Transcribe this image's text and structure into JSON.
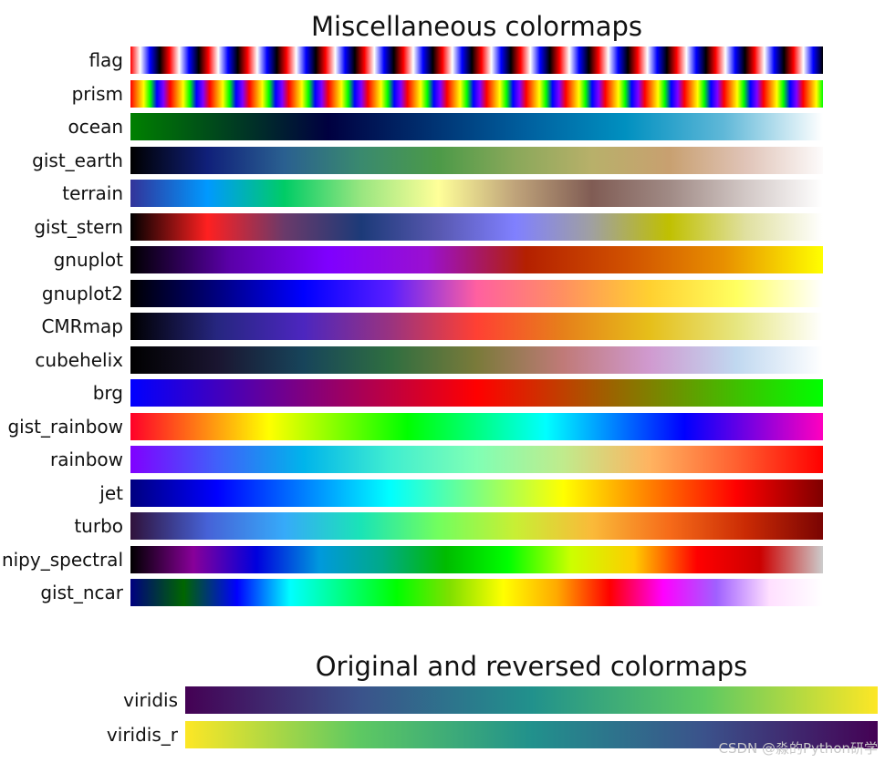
{
  "chart_data": [
    {
      "type": "colormap",
      "title": "Miscellaneous colormaps",
      "colormaps": [
        {
          "name": "flag",
          "stops": [
            "#ff0000",
            "#ffffff",
            "#0000ff",
            "#000000",
            "#ff0000",
            "#ffffff",
            "#0000ff",
            "#000000",
            "#ff0000",
            "#ffffff",
            "#0000ff",
            "#000000",
            "#ff0000",
            "#ffffff",
            "#0000ff",
            "#000000",
            "#ff0000",
            "#ffffff",
            "#0000ff",
            "#000000",
            "#ff0000",
            "#ffffff",
            "#0000ff",
            "#000000",
            "#ff0000",
            "#ffffff",
            "#0000ff",
            "#000000",
            "#ff0000",
            "#ffffff",
            "#0000ff",
            "#000000",
            "#ff0000",
            "#ffffff",
            "#0000ff",
            "#000000",
            "#ff0000",
            "#ffffff",
            "#0000ff",
            "#000000",
            "#ff0000",
            "#ffffff",
            "#0000ff",
            "#000000",
            "#ff0000",
            "#ffffff",
            "#0000ff",
            "#000000",
            "#ff0000",
            "#ffffff",
            "#0000ff",
            "#000000",
            "#ff0000",
            "#ffffff",
            "#0000ff",
            "#000000",
            "#ff0000",
            "#ffffff",
            "#0000ff",
            "#000000",
            "#ff0000",
            "#ffffff",
            "#0000ff",
            "#000000",
            "#ff0000",
            "#ffffff",
            "#0000ff",
            "#000000",
            "#ff0000",
            "#ffffff",
            "#0000ff",
            "#000000"
          ]
        },
        {
          "name": "prism",
          "stops": [
            "#ff0000",
            "#ff8000",
            "#ffff00",
            "#00ff00",
            "#0000ff",
            "#8000ff",
            "#ff0000",
            "#ff8000",
            "#ffff00",
            "#00ff00",
            "#0000ff",
            "#8000ff",
            "#ff0000",
            "#ff8000",
            "#ffff00",
            "#00ff00",
            "#0000ff",
            "#8000ff",
            "#ff0000",
            "#ff8000",
            "#ffff00",
            "#00ff00",
            "#0000ff",
            "#8000ff",
            "#ff0000",
            "#ff8000",
            "#ffff00",
            "#00ff00",
            "#0000ff",
            "#8000ff",
            "#ff0000",
            "#ff8000",
            "#ffff00",
            "#00ff00",
            "#0000ff",
            "#8000ff",
            "#ff0000",
            "#ff8000",
            "#ffff00",
            "#00ff00",
            "#0000ff",
            "#8000ff",
            "#ff0000",
            "#ff8000",
            "#ffff00",
            "#00ff00",
            "#0000ff",
            "#8000ff",
            "#ff0000",
            "#ff8000",
            "#ffff00",
            "#00ff00",
            "#0000ff",
            "#8000ff",
            "#ff0000",
            "#ff8000",
            "#ffff00",
            "#00ff00",
            "#0000ff",
            "#8000ff",
            "#ff0000",
            "#ff8000",
            "#ffff00",
            "#00ff00",
            "#0000ff",
            "#8000ff",
            "#ff0000",
            "#ff8000",
            "#ffff00",
            "#00ff00",
            "#0000ff",
            "#8000ff",
            "#ff0000",
            "#ff8000",
            "#ffff00",
            "#00ff00",
            "#0000ff",
            "#8000ff",
            "#ff0000",
            "#ff8000",
            "#ffff00",
            "#00ff00",
            "#0000ff",
            "#8000ff",
            "#ff0000",
            "#ff8000",
            "#ffff00",
            "#00ff00",
            "#0000ff",
            "#8000ff",
            "#ff0000",
            "#ff8000",
            "#ffff00",
            "#00ff00",
            "#0000ff",
            "#8000ff",
            "#ff0000",
            "#ff8000",
            "#ffff00",
            "#00ff00",
            "#0000ff",
            "#8000ff",
            "#ff0000",
            "#ff8000",
            "#ffff00",
            "#00ff00"
          ]
        },
        {
          "name": "ocean",
          "stops": [
            "#008000",
            "#004020",
            "#000040",
            "#003070",
            "#00609f",
            "#0090c0",
            "#60b8d8",
            "#ffffff"
          ]
        },
        {
          "name": "gist_earth",
          "stops": [
            "#000000",
            "#10207a",
            "#2a6090",
            "#3a8a6e",
            "#4c9a48",
            "#8aa85a",
            "#b8b06a",
            "#c8a070",
            "#e0c4b8",
            "#fdfbfb"
          ]
        },
        {
          "name": "terrain",
          "stops": [
            "#333399",
            "#0099ff",
            "#00cc66",
            "#99e680",
            "#ffff99",
            "#bfa37a",
            "#805c54",
            "#a08a85",
            "#d2c8c6",
            "#ffffff"
          ]
        },
        {
          "name": "gist_stern",
          "stops": [
            "#000000",
            "#ff2020",
            "#6a3a6a",
            "#1c3a78",
            "#5858b0",
            "#8080ff",
            "#a0a0a0",
            "#c0c000",
            "#e0e0a0",
            "#ffffff"
          ]
        },
        {
          "name": "gnuplot",
          "stops": [
            "#000000",
            "#5a00a8",
            "#7f00ff",
            "#9a10d0",
            "#b42000",
            "#d05000",
            "#e89000",
            "#ffff00"
          ]
        },
        {
          "name": "gnuplot2",
          "stops": [
            "#000000",
            "#00007f",
            "#0000ff",
            "#5a1eff",
            "#ff60a0",
            "#ff9060",
            "#ffd030",
            "#ffff60",
            "#ffffff"
          ]
        },
        {
          "name": "CMRmap",
          "stops": [
            "#000000",
            "#262680",
            "#4c26bf",
            "#993380",
            "#ff4033",
            "#e6801a",
            "#e6bf1a",
            "#e6e680",
            "#ffffff"
          ]
        },
        {
          "name": "cubehelix",
          "stops": [
            "#000000",
            "#1a1530",
            "#17445a",
            "#2f6e40",
            "#7a7a3a",
            "#c07a78",
            "#d09ad0",
            "#c0d8f0",
            "#ffffff"
          ]
        },
        {
          "name": "brg",
          "stops": [
            "#0000ff",
            "#7f0080",
            "#ff0000",
            "#7f8000",
            "#00ff00"
          ]
        },
        {
          "name": "gist_rainbow",
          "stops": [
            "#ff0029",
            "#ffff00",
            "#00ff00",
            "#00ffff",
            "#0000ff",
            "#ff00bf"
          ]
        },
        {
          "name": "rainbow",
          "stops": [
            "#8000ff",
            "#4060fa",
            "#00b4eb",
            "#40eed0",
            "#80ffb4",
            "#c0eb8c",
            "#ffb360",
            "#ff6030",
            "#ff0000"
          ]
        },
        {
          "name": "jet",
          "stops": [
            "#00007f",
            "#0000ff",
            "#007fff",
            "#00ffff",
            "#7fff7f",
            "#ffff00",
            "#ff7f00",
            "#ff0000",
            "#7f0000"
          ]
        },
        {
          "name": "turbo",
          "stops": [
            "#30123b",
            "#4662d7",
            "#36aaf9",
            "#1ae4b6",
            "#72fe5e",
            "#c8ef34",
            "#faba39",
            "#f66b19",
            "#ca2a04",
            "#7a0403"
          ]
        },
        {
          "name": "nipy_spectral",
          "stops": [
            "#000000",
            "#880099",
            "#0000dd",
            "#0099dd",
            "#00aa88",
            "#00bb00",
            "#00ff00",
            "#ccff00",
            "#ffcc00",
            "#ff0000",
            "#cc0000",
            "#cccccc"
          ]
        },
        {
          "name": "gist_ncar",
          "stops": [
            "#000080",
            "#006600",
            "#0000ff",
            "#00ffff",
            "#00ff80",
            "#00ff00",
            "#80e000",
            "#ffff00",
            "#ffaa00",
            "#ff0000",
            "#ff00ff",
            "#a060ff",
            "#ffe0ff",
            "#ffffff"
          ]
        }
      ]
    },
    {
      "type": "colormap",
      "title": "Original and reversed  colormaps",
      "colormaps": [
        {
          "name": "viridis",
          "stops": [
            "#440154",
            "#3b528b",
            "#21918c",
            "#5ec962",
            "#fde725"
          ]
        },
        {
          "name": "viridis_r",
          "stops": [
            "#fde725",
            "#5ec962",
            "#21918c",
            "#3b528b",
            "#440154"
          ]
        }
      ]
    }
  ],
  "watermark": "CSDN @淼的Python研学"
}
